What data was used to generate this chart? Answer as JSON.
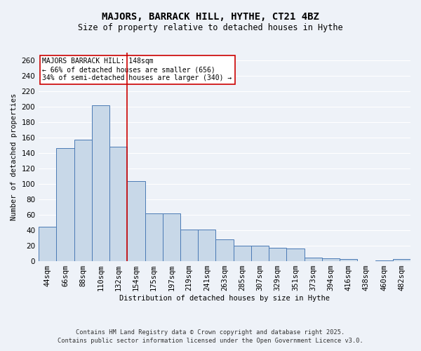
{
  "title": "MAJORS, BARRACK HILL, HYTHE, CT21 4BZ",
  "subtitle": "Size of property relative to detached houses in Hythe",
  "xlabel": "Distribution of detached houses by size in Hythe",
  "ylabel": "Number of detached properties",
  "categories": [
    "44sqm",
    "66sqm",
    "88sqm",
    "110sqm",
    "132sqm",
    "154sqm",
    "175sqm",
    "197sqm",
    "219sqm",
    "241sqm",
    "263sqm",
    "285sqm",
    "307sqm",
    "329sqm",
    "351sqm",
    "373sqm",
    "394sqm",
    "416sqm",
    "438sqm",
    "460sqm",
    "482sqm"
  ],
  "values": [
    45,
    146,
    157,
    202,
    148,
    104,
    62,
    62,
    41,
    41,
    28,
    20,
    20,
    17,
    16,
    5,
    4,
    3,
    0,
    1,
    3
  ],
  "bar_color": "#c8d8e8",
  "bar_edge_color": "#4a7ab5",
  "ref_line_idx": 5,
  "ref_line_color": "#cc0000",
  "annotation_text": "MAJORS BARRACK HILL: 148sqm\n← 66% of detached houses are smaller (656)\n34% of semi-detached houses are larger (340) →",
  "annotation_box_color": "#ffffff",
  "annotation_box_edge": "#cc0000",
  "ylim": [
    0,
    270
  ],
  "yticks": [
    0,
    20,
    40,
    60,
    80,
    100,
    120,
    140,
    160,
    180,
    200,
    220,
    240,
    260
  ],
  "background_color": "#eef2f8",
  "grid_color": "#ffffff",
  "footer_line1": "Contains HM Land Registry data © Crown copyright and database right 2025.",
  "footer_line2": "Contains public sector information licensed under the Open Government Licence v3.0."
}
